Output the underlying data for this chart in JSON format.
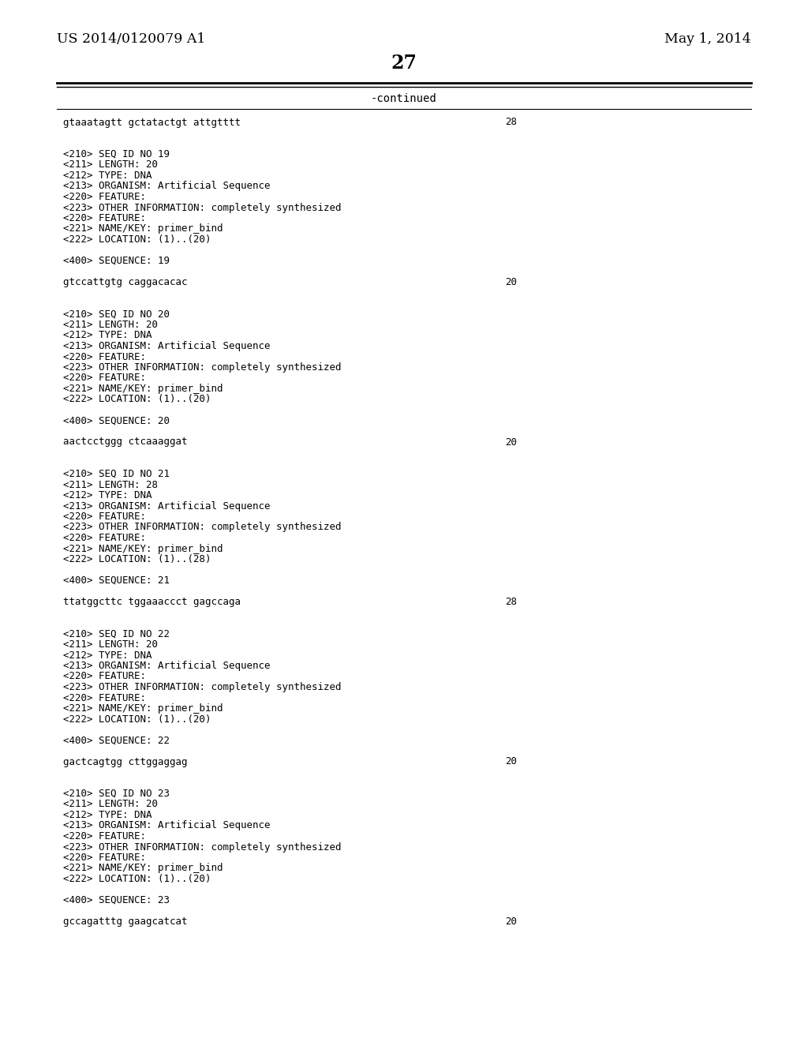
{
  "bg_color": "#ffffff",
  "header_left": "US 2014/0120079 A1",
  "header_right": "May 1, 2014",
  "page_number": "27",
  "continued_label": "-continued",
  "font_size_header": 12.5,
  "font_size_page": 15,
  "font_size_content": 9.0,
  "text_color": "#000000",
  "line_color": "#000000",
  "content": [
    {
      "text": "gtaaatagtt gctatactgt attgtttt",
      "seq": "28"
    },
    {
      "text": ""
    },
    {
      "text": ""
    },
    {
      "text": "<210> SEQ ID NO 19"
    },
    {
      "text": "<211> LENGTH: 20"
    },
    {
      "text": "<212> TYPE: DNA"
    },
    {
      "text": "<213> ORGANISM: Artificial Sequence"
    },
    {
      "text": "<220> FEATURE:"
    },
    {
      "text": "<223> OTHER INFORMATION: completely synthesized"
    },
    {
      "text": "<220> FEATURE:"
    },
    {
      "text": "<221> NAME/KEY: primer_bind"
    },
    {
      "text": "<222> LOCATION: (1)..(20)"
    },
    {
      "text": ""
    },
    {
      "text": "<400> SEQUENCE: 19"
    },
    {
      "text": ""
    },
    {
      "text": "gtccattgtg caggacacac",
      "seq": "20"
    },
    {
      "text": ""
    },
    {
      "text": ""
    },
    {
      "text": "<210> SEQ ID NO 20"
    },
    {
      "text": "<211> LENGTH: 20"
    },
    {
      "text": "<212> TYPE: DNA"
    },
    {
      "text": "<213> ORGANISM: Artificial Sequence"
    },
    {
      "text": "<220> FEATURE:"
    },
    {
      "text": "<223> OTHER INFORMATION: completely synthesized"
    },
    {
      "text": "<220> FEATURE:"
    },
    {
      "text": "<221> NAME/KEY: primer_bind"
    },
    {
      "text": "<222> LOCATION: (1)..(20)"
    },
    {
      "text": ""
    },
    {
      "text": "<400> SEQUENCE: 20"
    },
    {
      "text": ""
    },
    {
      "text": "aactcctggg ctcaaaggat",
      "seq": "20"
    },
    {
      "text": ""
    },
    {
      "text": ""
    },
    {
      "text": "<210> SEQ ID NO 21"
    },
    {
      "text": "<211> LENGTH: 28"
    },
    {
      "text": "<212> TYPE: DNA"
    },
    {
      "text": "<213> ORGANISM: Artificial Sequence"
    },
    {
      "text": "<220> FEATURE:"
    },
    {
      "text": "<223> OTHER INFORMATION: completely synthesized"
    },
    {
      "text": "<220> FEATURE:"
    },
    {
      "text": "<221> NAME/KEY: primer_bind"
    },
    {
      "text": "<222> LOCATION: (1)..(28)"
    },
    {
      "text": ""
    },
    {
      "text": "<400> SEQUENCE: 21"
    },
    {
      "text": ""
    },
    {
      "text": "ttatggcttc tggaaaccct gagccaga",
      "seq": "28"
    },
    {
      "text": ""
    },
    {
      "text": ""
    },
    {
      "text": "<210> SEQ ID NO 22"
    },
    {
      "text": "<211> LENGTH: 20"
    },
    {
      "text": "<212> TYPE: DNA"
    },
    {
      "text": "<213> ORGANISM: Artificial Sequence"
    },
    {
      "text": "<220> FEATURE:"
    },
    {
      "text": "<223> OTHER INFORMATION: completely synthesized"
    },
    {
      "text": "<220> FEATURE:"
    },
    {
      "text": "<221> NAME/KEY: primer_bind"
    },
    {
      "text": "<222> LOCATION: (1)..(20)"
    },
    {
      "text": ""
    },
    {
      "text": "<400> SEQUENCE: 22"
    },
    {
      "text": ""
    },
    {
      "text": "gactcagtgg cttggaggag",
      "seq": "20"
    },
    {
      "text": ""
    },
    {
      "text": ""
    },
    {
      "text": "<210> SEQ ID NO 23"
    },
    {
      "text": "<211> LENGTH: 20"
    },
    {
      "text": "<212> TYPE: DNA"
    },
    {
      "text": "<213> ORGANISM: Artificial Sequence"
    },
    {
      "text": "<220> FEATURE:"
    },
    {
      "text": "<223> OTHER INFORMATION: completely synthesized"
    },
    {
      "text": "<220> FEATURE:"
    },
    {
      "text": "<221> NAME/KEY: primer_bind"
    },
    {
      "text": "<222> LOCATION: (1)..(20)"
    },
    {
      "text": ""
    },
    {
      "text": "<400> SEQUENCE: 23"
    },
    {
      "text": ""
    },
    {
      "text": "gccagatttg gaagcatcat",
      "seq": "20"
    }
  ]
}
